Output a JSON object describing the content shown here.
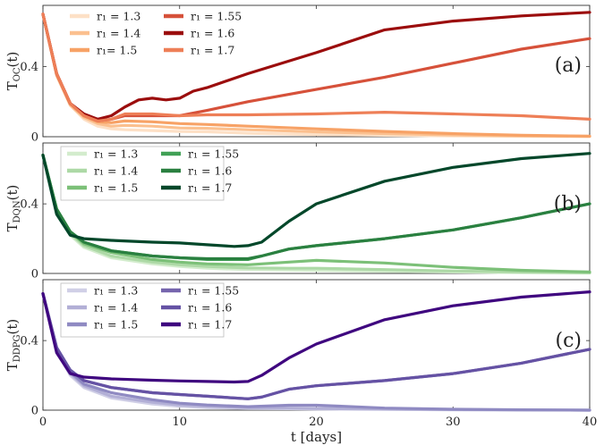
{
  "chart_data": [
    {
      "type": "line",
      "ylabel_main": "T",
      "ylabel_sub": "OC",
      "ylabel_tail": "(t)",
      "panel_label": "(a)",
      "xlim": [
        0,
        40
      ],
      "ylim": [
        0,
        0.75
      ],
      "yticks": [
        "0",
        "0.4"
      ],
      "legend_placement": "top-left",
      "series": [
        {
          "name": "r₁ = 1.3",
          "color": "#fde0c6",
          "x": [
            0,
            1,
            2,
            3,
            4,
            5,
            6,
            8,
            10,
            12,
            15,
            20,
            25,
            30,
            35,
            40
          ],
          "y": [
            0.7,
            0.35,
            0.18,
            0.1,
            0.06,
            0.045,
            0.04,
            0.035,
            0.03,
            0.028,
            0.02,
            0.012,
            0.008,
            0.004,
            0.002,
            0.001
          ]
        },
        {
          "name": "r₁ = 1.4",
          "color": "#fbc08f",
          "x": [
            0,
            1,
            2,
            3,
            4,
            5,
            6,
            8,
            10,
            12,
            15,
            20,
            25,
            30,
            35,
            40
          ],
          "y": [
            0.7,
            0.35,
            0.18,
            0.11,
            0.075,
            0.06,
            0.065,
            0.06,
            0.05,
            0.048,
            0.04,
            0.028,
            0.018,
            0.01,
            0.005,
            0.002
          ]
        },
        {
          "name": "r₁= 1.5",
          "color": "#f7a266",
          "x": [
            0,
            1,
            2,
            3,
            4,
            5,
            6,
            8,
            10,
            12,
            15,
            20,
            25,
            30,
            35,
            40
          ],
          "y": [
            0.7,
            0.36,
            0.19,
            0.12,
            0.085,
            0.08,
            0.09,
            0.085,
            0.075,
            0.07,
            0.06,
            0.045,
            0.03,
            0.018,
            0.008,
            0.003
          ]
        },
        {
          "name": "r₁ = 1.55",
          "color": "#d6513a",
          "x": [
            0,
            1,
            2,
            3,
            4,
            5,
            6,
            8,
            10,
            12,
            15,
            20,
            25,
            30,
            35,
            40
          ],
          "y": [
            0.7,
            0.36,
            0.19,
            0.12,
            0.09,
            0.1,
            0.12,
            0.12,
            0.12,
            0.15,
            0.2,
            0.27,
            0.34,
            0.42,
            0.5,
            0.56
          ]
        },
        {
          "name": "r₁ = 1.6",
          "color": "#9b0d0d",
          "x": [
            0,
            1,
            2,
            3,
            4,
            5,
            6,
            7,
            8,
            9,
            10,
            11,
            12,
            15,
            20,
            25,
            30,
            35,
            40
          ],
          "y": [
            0.7,
            0.36,
            0.19,
            0.13,
            0.1,
            0.12,
            0.17,
            0.21,
            0.22,
            0.21,
            0.22,
            0.26,
            0.28,
            0.36,
            0.48,
            0.61,
            0.66,
            0.69,
            0.71
          ]
        },
        {
          "name": "r₁ = 1.7",
          "color": "#ee7f57",
          "x": [
            0,
            1,
            2,
            3,
            4,
            5,
            6,
            8,
            10,
            12,
            15,
            20,
            25,
            30,
            35,
            40
          ],
          "y": [
            0.7,
            0.36,
            0.19,
            0.12,
            0.09,
            0.1,
            0.13,
            0.13,
            0.12,
            0.125,
            0.125,
            0.13,
            0.14,
            0.13,
            0.12,
            0.1
          ]
        }
      ]
    },
    {
      "type": "line",
      "ylabel_main": "T",
      "ylabel_sub": "DQN",
      "ylabel_tail": "(t)",
      "panel_label": "(b)",
      "xlim": [
        0,
        40
      ],
      "ylim": [
        0,
        0.75
      ],
      "yticks": [
        "0",
        "0.4"
      ],
      "legend_placement": "top-left",
      "series": [
        {
          "name": "r₁ = 1.3",
          "color": "#d3eccd",
          "x": [
            0,
            1,
            2,
            3,
            5,
            8,
            10,
            12,
            15,
            18,
            20,
            25,
            30,
            35,
            40
          ],
          "y": [
            0.68,
            0.36,
            0.22,
            0.15,
            0.09,
            0.055,
            0.04,
            0.03,
            0.022,
            0.02,
            0.018,
            0.012,
            0.008,
            0.004,
            0.002
          ]
        },
        {
          "name": "r₁ = 1.4",
          "color": "#add9a6",
          "x": [
            0,
            1,
            2,
            3,
            5,
            8,
            10,
            12,
            15,
            18,
            20,
            25,
            30,
            35,
            40
          ],
          "y": [
            0.68,
            0.37,
            0.23,
            0.16,
            0.1,
            0.065,
            0.05,
            0.04,
            0.032,
            0.03,
            0.03,
            0.022,
            0.014,
            0.008,
            0.004
          ]
        },
        {
          "name": "r₁ = 1.5",
          "color": "#7cc078",
          "x": [
            0,
            1,
            2,
            3,
            5,
            8,
            10,
            12,
            15,
            18,
            20,
            25,
            30,
            35,
            40
          ],
          "y": [
            0.68,
            0.37,
            0.24,
            0.17,
            0.12,
            0.08,
            0.065,
            0.055,
            0.05,
            0.065,
            0.075,
            0.06,
            0.035,
            0.018,
            0.008
          ]
        },
        {
          "name": "r₁ = 1.55",
          "color": "#41a156",
          "x": [
            0,
            1,
            2,
            3,
            5,
            8,
            10,
            12,
            15,
            16,
            18,
            20,
            25,
            30,
            35,
            40
          ],
          "y": [
            0.68,
            0.37,
            0.24,
            0.18,
            0.13,
            0.1,
            0.09,
            0.08,
            0.08,
            0.1,
            0.14,
            0.16,
            0.2,
            0.25,
            0.32,
            0.4
          ]
        },
        {
          "name": "r₁ = 1.6",
          "color": "#2a8040",
          "x": [
            0,
            1,
            2,
            3,
            5,
            8,
            10,
            12,
            15,
            16,
            18,
            20,
            25,
            30,
            35,
            40
          ],
          "y": [
            0.68,
            0.37,
            0.24,
            0.18,
            0.13,
            0.1,
            0.09,
            0.085,
            0.085,
            0.1,
            0.14,
            0.16,
            0.2,
            0.25,
            0.32,
            0.4
          ]
        },
        {
          "name": "r₁ = 1.7",
          "color": "#02472a",
          "x": [
            0,
            1,
            2,
            3,
            5,
            8,
            10,
            12,
            14,
            15,
            16,
            18,
            20,
            25,
            30,
            35,
            40
          ],
          "y": [
            0.68,
            0.34,
            0.22,
            0.2,
            0.19,
            0.18,
            0.175,
            0.165,
            0.155,
            0.16,
            0.18,
            0.3,
            0.4,
            0.53,
            0.61,
            0.66,
            0.69
          ]
        }
      ]
    },
    {
      "type": "line",
      "ylabel_main": "T",
      "ylabel_sub": "DDPG",
      "ylabel_tail": "(t)",
      "panel_label": "(c)",
      "xlabel": "t [days]",
      "xlim": [
        0,
        40
      ],
      "ylim": [
        0,
        0.75
      ],
      "xticks": [
        0,
        10,
        20,
        30,
        40
      ],
      "yticks": [
        "0",
        "0.4"
      ],
      "legend_placement": "top-left",
      "series": [
        {
          "name": "r₁ = 1.3",
          "color": "#d0cfe6",
          "x": [
            0,
            1,
            2,
            3,
            5,
            8,
            10,
            12,
            15,
            18,
            20,
            25,
            30,
            35,
            40
          ],
          "y": [
            0.67,
            0.34,
            0.2,
            0.13,
            0.07,
            0.035,
            0.022,
            0.015,
            0.01,
            0.008,
            0.006,
            0.004,
            0.002,
            0.001,
            0.0
          ]
        },
        {
          "name": "r₁ = 1.4",
          "color": "#b2afd6",
          "x": [
            0,
            1,
            2,
            3,
            5,
            8,
            10,
            12,
            15,
            18,
            20,
            25,
            30,
            35,
            40
          ],
          "y": [
            0.67,
            0.35,
            0.21,
            0.14,
            0.08,
            0.045,
            0.03,
            0.022,
            0.015,
            0.012,
            0.01,
            0.006,
            0.003,
            0.001,
            0.0
          ]
        },
        {
          "name": "r₁ = 1.5",
          "color": "#8f8ac2",
          "x": [
            0,
            1,
            2,
            3,
            5,
            8,
            10,
            12,
            15,
            18,
            20,
            22,
            25,
            30,
            35,
            40
          ],
          "y": [
            0.67,
            0.35,
            0.22,
            0.15,
            0.1,
            0.06,
            0.04,
            0.03,
            0.02,
            0.028,
            0.028,
            0.022,
            0.012,
            0.005,
            0.002,
            0.0
          ]
        },
        {
          "name": "r₁ = 1.55",
          "color": "#7564ad",
          "x": [
            0,
            1,
            2,
            3,
            5,
            8,
            10,
            12,
            15,
            16,
            18,
            20,
            25,
            30,
            35,
            40
          ],
          "y": [
            0.67,
            0.36,
            0.23,
            0.17,
            0.13,
            0.1,
            0.09,
            0.08,
            0.065,
            0.075,
            0.12,
            0.14,
            0.17,
            0.21,
            0.27,
            0.35
          ]
        },
        {
          "name": "r₁ = 1.6",
          "color": "#6552a4",
          "x": [
            0,
            1,
            2,
            3,
            5,
            8,
            10,
            12,
            15,
            16,
            18,
            20,
            25,
            30,
            35,
            40
          ],
          "y": [
            0.67,
            0.36,
            0.23,
            0.17,
            0.13,
            0.1,
            0.09,
            0.08,
            0.065,
            0.075,
            0.12,
            0.14,
            0.17,
            0.21,
            0.27,
            0.35
          ]
        },
        {
          "name": "r₁ = 1.7",
          "color": "#3f067f",
          "x": [
            0,
            1,
            2,
            3,
            5,
            8,
            10,
            12,
            14,
            15,
            16,
            18,
            20,
            25,
            30,
            35,
            40
          ],
          "y": [
            0.67,
            0.33,
            0.21,
            0.19,
            0.18,
            0.172,
            0.168,
            0.165,
            0.162,
            0.165,
            0.2,
            0.3,
            0.38,
            0.52,
            0.6,
            0.65,
            0.68
          ]
        }
      ]
    }
  ]
}
